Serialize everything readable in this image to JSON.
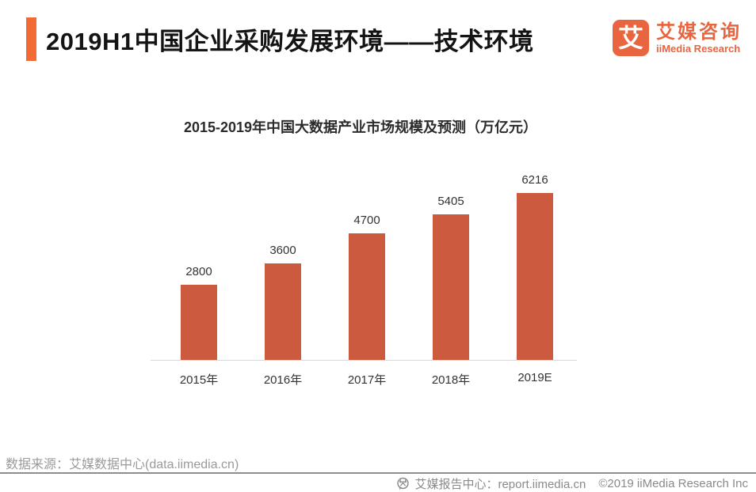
{
  "header": {
    "title": "2019H1中国企业采购发展环境——技术环境",
    "logo": {
      "mark": "艾",
      "name_cn": "艾媒咨询",
      "name_en": "iiMedia Research"
    }
  },
  "chart_data": {
    "type": "bar",
    "title": "2015-2019年中国大数据产业市场规模及预测（万亿元）",
    "categories": [
      "2015年",
      "2016年",
      "2017年",
      "2018年",
      "2019E"
    ],
    "values": [
      2800,
      3600,
      4700,
      5405,
      6216
    ],
    "xlabel": "",
    "ylabel": "",
    "ylim": [
      0,
      6800
    ],
    "grid": false,
    "legend": false,
    "data_labels": true,
    "bar_color": "#CB5A3E"
  },
  "footer": {
    "source": "数据来源：艾媒数据中心(data.iimedia.cn)",
    "report_center": "艾媒报告中心：report.iimedia.cn",
    "copyright": "©2019  iiMedia Research Inc"
  },
  "colors": {
    "accent_bar": "#F26B35",
    "logo_orange": "#E8653F",
    "bar": "#CB5A3E",
    "title_text": "#141414",
    "chart_text": "#333333",
    "footer_text": "#9a9a9a",
    "footer_line": "#8d8d8d",
    "axis_line": "#d9d9d9"
  }
}
